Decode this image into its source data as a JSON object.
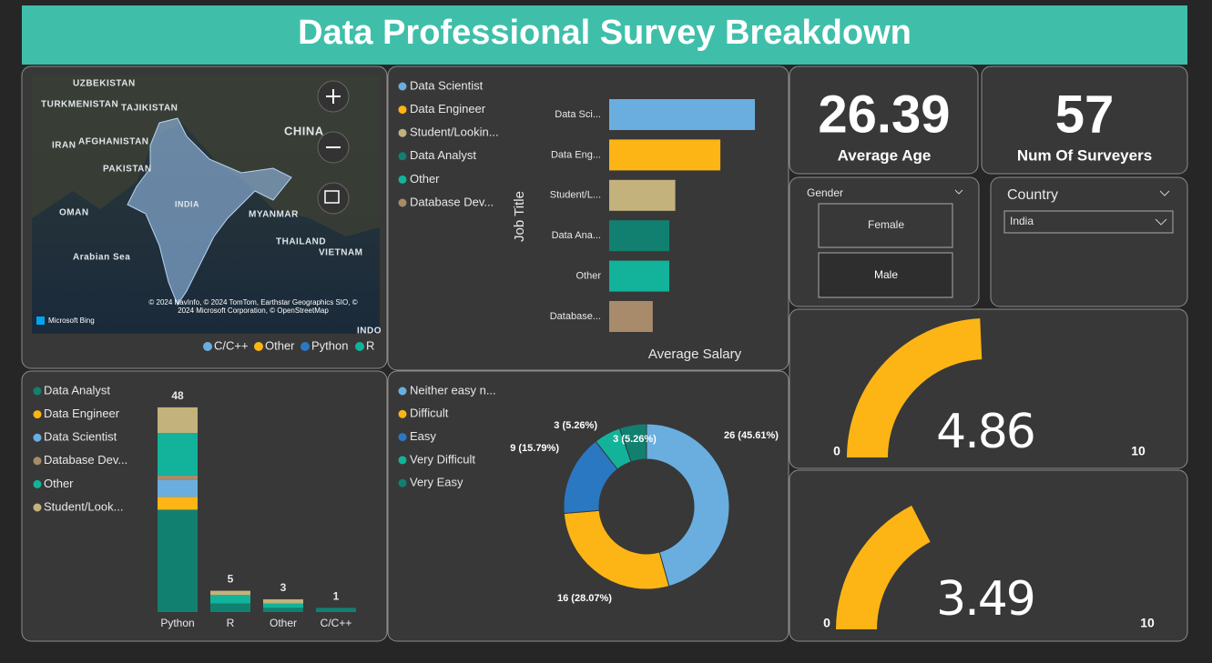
{
  "header": {
    "title": "Data Professional Survey Breakdown"
  },
  "map": {
    "labels": [
      "UZBEKISTAN",
      "TURKMENISTAN",
      "TAJIKISTAN",
      "CHINA",
      "IRAN",
      "AFGHANISTAN",
      "PAKISTAN",
      "INDIA",
      "OMAN",
      "MYANMAR",
      "THAILAND",
      "Arabian Sea",
      "VIETNAM",
      "INDO"
    ],
    "attribution": "© 2024 NavInfo, © 2024 TomTom, Earthstar Geographics SIO, © 2024 Microsoft Corporation, © OpenStreetMap",
    "provider": "Microsoft Bing",
    "legend": [
      {
        "name": "C/C++",
        "color": "#6aaee0"
      },
      {
        "name": "Other",
        "color": "#fdb515"
      },
      {
        "name": "Python",
        "color": "#2a78c2"
      },
      {
        "name": "R",
        "color": "#12b39a"
      }
    ]
  },
  "kpis": [
    {
      "value": 26.39,
      "label": "Average Age"
    },
    {
      "value": 57,
      "label": "Num Of Surveyers"
    }
  ],
  "slicers": {
    "gender": {
      "title": "Gender",
      "options": [
        "Female",
        "Male"
      ]
    },
    "country": {
      "title": "Country",
      "selected": "India"
    }
  },
  "chart_data": [
    {
      "type": "hbar",
      "x_label": "Average Salary",
      "y_label": "Job Title",
      "categories": [
        "Data Sci...",
        "Data Eng...",
        "Student/L...",
        "Data Ana...",
        "Other",
        "Database..."
      ],
      "legend": [
        "Data Scientist",
        "Data Engineer",
        "Student/Lookin...",
        "Data Analyst",
        "Other",
        "Database Dev..."
      ],
      "colors": [
        "#6aaee0",
        "#fdb515",
        "#c4b27c",
        "#128070",
        "#12b39a",
        "#a88b6a"
      ],
      "values": [
        97,
        74,
        44,
        40,
        40,
        29
      ],
      "xlim": [
        0,
        100
      ]
    },
    {
      "type": "stacked_bar",
      "categories": [
        "Python",
        "R",
        "Other",
        "C/C++"
      ],
      "totals": [
        48,
        5,
        3,
        1
      ],
      "ylim": [
        0,
        50
      ],
      "series": [
        {
          "name": "Data Analyst",
          "color": "#128070",
          "values": [
            24,
            2,
            1,
            1
          ]
        },
        {
          "name": "Data Engineer",
          "color": "#fdb515",
          "values": [
            3,
            0,
            0,
            0
          ]
        },
        {
          "name": "Data Scientist",
          "color": "#6aaee0",
          "values": [
            4,
            0,
            0,
            0
          ]
        },
        {
          "name": "Database Dev...",
          "color": "#a88b6a",
          "values": [
            1,
            0,
            0,
            0
          ]
        },
        {
          "name": "Other",
          "color": "#12b39a",
          "values": [
            10,
            2,
            1,
            0
          ]
        },
        {
          "name": "Student/Look...",
          "color": "#c4b27c",
          "values": [
            6,
            1,
            1,
            0
          ]
        }
      ]
    },
    {
      "type": "donut",
      "categories": [
        "Neither easy n...",
        "Difficult",
        "Easy",
        "Very Difficult",
        "Very Easy"
      ],
      "values": [
        26,
        16,
        9,
        3,
        3
      ],
      "value_labels": [
        "26 (45.61%)",
        "16 (28.07%)",
        "9 (15.79%)",
        "3 (5.26%)",
        "3 (5.26%)"
      ],
      "colors": [
        "#6aaee0",
        "#fdb515",
        "#2a78c2",
        "#12b39a",
        "#128070"
      ]
    },
    {
      "type": "gauge",
      "value": 4.86,
      "xlim": [
        0,
        10
      ],
      "xticks": [
        0,
        10
      ],
      "color": "#fdb515"
    },
    {
      "type": "gauge",
      "value": 3.49,
      "xlim": [
        0,
        10
      ],
      "xticks": [
        0,
        10
      ],
      "color": "#fdb515"
    }
  ]
}
